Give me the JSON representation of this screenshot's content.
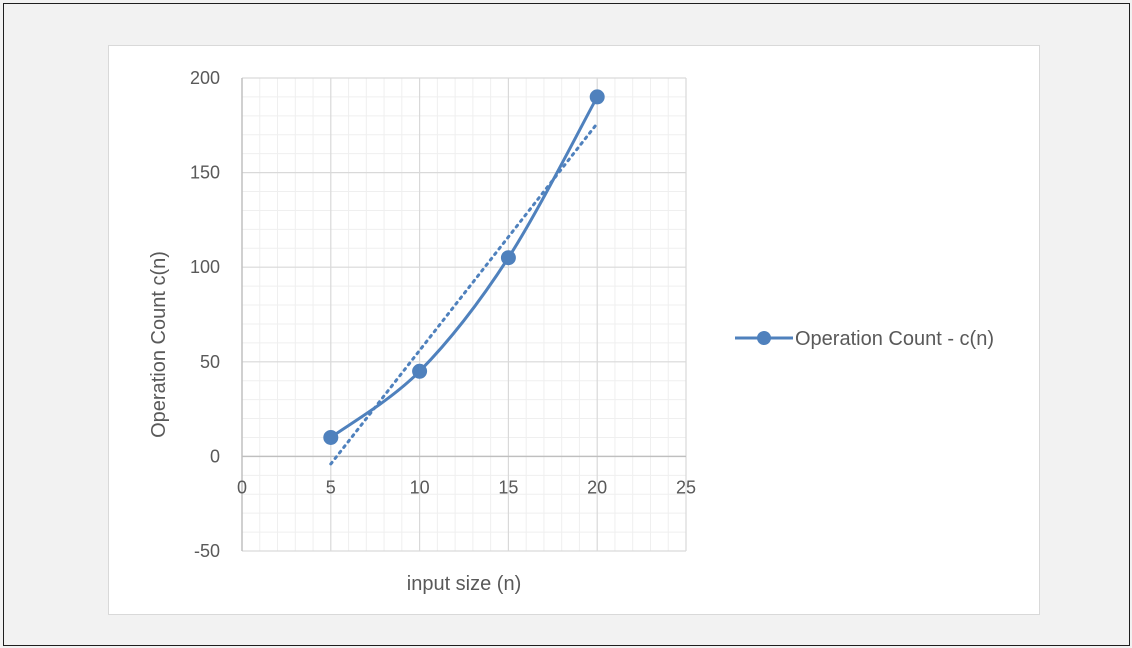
{
  "colors": {
    "series": "#4f81bd",
    "major_grid": "#d9d9d9",
    "minor_grid": "#efefef",
    "axis": "#bfbfbf",
    "text": "#595959",
    "background": "#f2f2f2"
  },
  "chart_data": {
    "type": "scatter",
    "title": "",
    "xlabel": "input size (n)",
    "ylabel": "Operation Count c(n)",
    "xlim": [
      0,
      25
    ],
    "ylim": [
      -50,
      200
    ],
    "x_ticks": [
      "0",
      "5",
      "10",
      "15",
      "20",
      "25"
    ],
    "y_ticks": [
      "-50",
      "0",
      "50",
      "100",
      "150",
      "200"
    ],
    "grid": "major and minor",
    "legend_position": "right",
    "series": [
      {
        "name": "Operation Count - c(n)",
        "style": "smoothed line with markers",
        "x": [
          5,
          10,
          15,
          20
        ],
        "y": [
          10,
          45,
          105,
          190
        ]
      }
    ],
    "trendline": {
      "type": "linear",
      "style": "dotted",
      "x": [
        5,
        20
      ],
      "y": [
        -4,
        176
      ]
    }
  }
}
